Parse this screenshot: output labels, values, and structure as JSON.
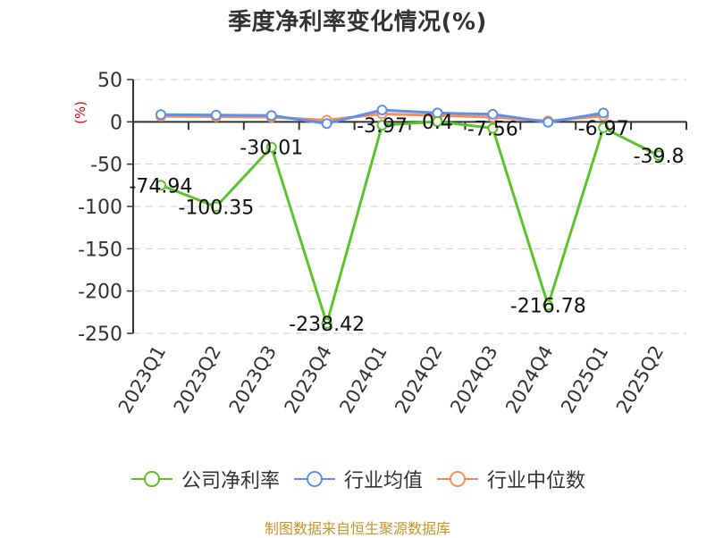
{
  "title": "季度净利率变化情况(%)",
  "y_axis_unit": "(%)",
  "source_text": "制图数据来自恒生聚源数据库",
  "colors": {
    "company": "#5bc42a",
    "industry_avg": "#5b8ff0",
    "industry_median": "#f78e5a",
    "unit_label": "#e8000b",
    "axis": "#333333",
    "grid": "#cccccc"
  },
  "legend": [
    {
      "label": "公司净利率",
      "color": "#5bc42a"
    },
    {
      "label": "行业均值",
      "color": "#5b8ff0"
    },
    {
      "label": "行业中位数",
      "color": "#f78e5a"
    }
  ],
  "chart_data": {
    "type": "line",
    "title": "季度净利率变化情况(%)",
    "xlabel": "",
    "ylabel": "(%)",
    "ylim": [
      -250,
      50
    ],
    "yticks": [
      50,
      0,
      -50,
      -100,
      -150,
      -200,
      -250
    ],
    "grid": true,
    "legend_position": "bottom",
    "categories": [
      "2023Q1",
      "2023Q2",
      "2023Q3",
      "2023Q4",
      "2024Q1",
      "2024Q2",
      "2024Q3",
      "2024Q4",
      "2025Q1",
      "2025Q2"
    ],
    "series": [
      {
        "name": "公司净利率",
        "values": [
          -74.94,
          -100.35,
          -30.01,
          -238.42,
          -3.97,
          0.4,
          -7.56,
          -216.78,
          -6.97,
          -39.8
        ],
        "labels": true
      },
      {
        "name": "行业均值",
        "values": [
          8.5,
          8,
          7.5,
          -2,
          14,
          10.5,
          9,
          -0.5,
          10.5,
          null
        ],
        "labels": false
      },
      {
        "name": "行业中位数",
        "values": [
          6.5,
          6,
          5.5,
          2,
          9.5,
          7.5,
          5.5,
          1,
          7,
          null
        ],
        "labels": false
      }
    ]
  }
}
